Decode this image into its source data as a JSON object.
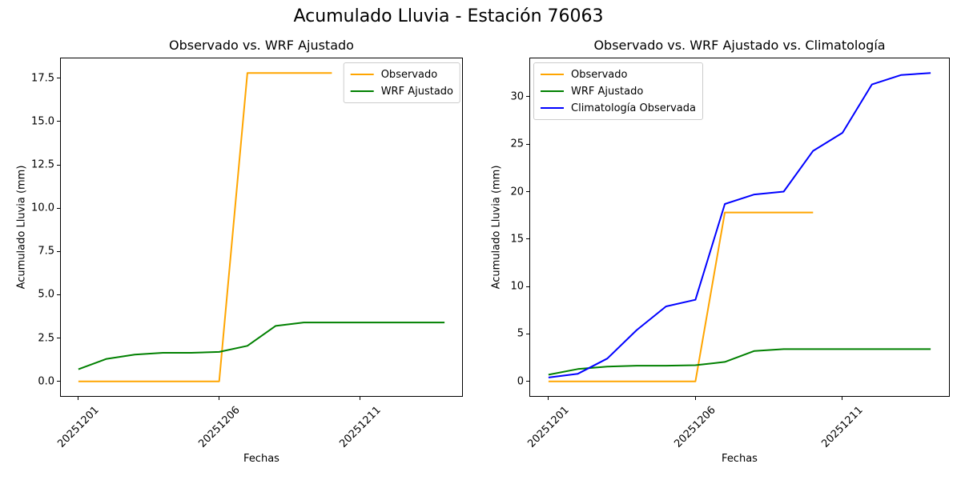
{
  "figure": {
    "title": "Acumulado Lluvia - Estación 76063"
  },
  "chart_data": [
    {
      "type": "line",
      "title": "Observado vs. WRF Ajustado",
      "xlabel": "Fechas",
      "ylabel": "Acumulado Lluvia (mm)",
      "x_dates": [
        "20251201",
        "20251202",
        "20251203",
        "20251204",
        "20251205",
        "20251206",
        "20251207",
        "20251208",
        "20251209",
        "20251210",
        "20251211",
        "20251212",
        "20251213",
        "20251214"
      ],
      "xlim": [
        -0.65,
        13.65
      ],
      "ylim": [
        -0.89,
        18.69
      ],
      "grid": false,
      "legend_position": "upper-right",
      "x_ticks": [
        {
          "index": 0,
          "label": "20251201"
        },
        {
          "index": 5,
          "label": "20251206"
        },
        {
          "index": 10,
          "label": "20251211"
        }
      ],
      "y_ticks": [
        {
          "value": 0,
          "label": "0.0"
        },
        {
          "value": 2.5,
          "label": "2.5"
        },
        {
          "value": 5,
          "label": "5.0"
        },
        {
          "value": 7.5,
          "label": "7.5"
        },
        {
          "value": 10,
          "label": "10.0"
        },
        {
          "value": 12.5,
          "label": "12.5"
        },
        {
          "value": 15,
          "label": "15.0"
        },
        {
          "value": 17.5,
          "label": "17.5"
        }
      ],
      "series": [
        {
          "name": "Observado",
          "color": "#FFA500",
          "values": [
            0,
            0,
            0,
            0,
            0,
            0,
            17.8,
            17.8,
            17.8,
            17.8
          ]
        },
        {
          "name": "WRF Ajustado",
          "color": "#008000",
          "values": [
            0.7,
            1.3,
            1.55,
            1.65,
            1.65,
            1.7,
            2.05,
            3.2,
            3.4,
            3.4,
            3.4,
            3.4,
            3.4,
            3.4
          ]
        }
      ]
    },
    {
      "type": "line",
      "title": "Observado vs. WRF Ajustado vs. Climatología",
      "xlabel": "Fechas",
      "ylabel": "Acumulado Lluvia (mm)",
      "x_dates": [
        "20251201",
        "20251202",
        "20251203",
        "20251204",
        "20251205",
        "20251206",
        "20251207",
        "20251208",
        "20251209",
        "20251210",
        "20251211",
        "20251212",
        "20251213",
        "20251214"
      ],
      "xlim": [
        -0.65,
        13.65
      ],
      "ylim": [
        -1.63,
        34.13
      ],
      "grid": false,
      "legend_position": "upper-left",
      "x_ticks": [
        {
          "index": 0,
          "label": "20251201"
        },
        {
          "index": 5,
          "label": "20251206"
        },
        {
          "index": 10,
          "label": "20251211"
        }
      ],
      "y_ticks": [
        {
          "value": 0,
          "label": "0"
        },
        {
          "value": 5,
          "label": "5"
        },
        {
          "value": 10,
          "label": "10"
        },
        {
          "value": 15,
          "label": "15"
        },
        {
          "value": 20,
          "label": "20"
        },
        {
          "value": 25,
          "label": "25"
        },
        {
          "value": 30,
          "label": "30"
        }
      ],
      "series": [
        {
          "name": "Observado",
          "color": "#FFA500",
          "values": [
            0,
            0,
            0,
            0,
            0,
            0,
            17.8,
            17.8,
            17.8,
            17.8
          ]
        },
        {
          "name": "WRF Ajustado",
          "color": "#008000",
          "values": [
            0.7,
            1.3,
            1.55,
            1.65,
            1.65,
            1.7,
            2.05,
            3.2,
            3.4,
            3.4,
            3.4,
            3.4,
            3.4,
            3.4
          ]
        },
        {
          "name": "Climatología Observada",
          "color": "#0000FF",
          "values": [
            0.4,
            0.8,
            2.4,
            5.4,
            7.9,
            8.6,
            18.7,
            19.7,
            20.0,
            24.3,
            26.2,
            31.3,
            32.3,
            32.5
          ]
        }
      ]
    }
  ]
}
